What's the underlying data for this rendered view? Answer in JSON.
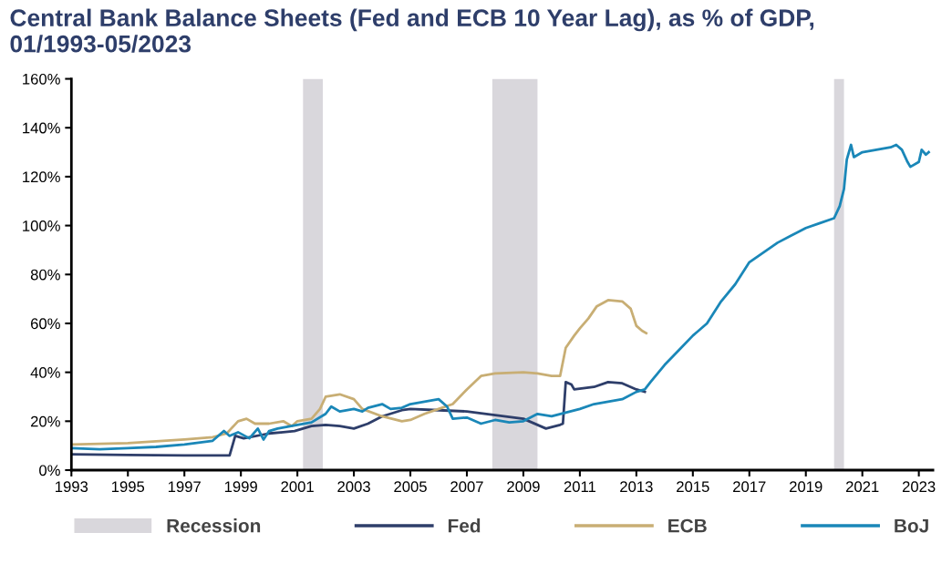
{
  "chart_data": {
    "type": "line",
    "title": "Central Bank Balance Sheets (Fed and ECB 10 Year Lag), as % of GDP, 01/1993-05/2023",
    "xlim": [
      1993,
      2023.5
    ],
    "xticks": [
      1993,
      1995,
      1997,
      1999,
      2001,
      2003,
      2005,
      2007,
      2009,
      2011,
      2013,
      2015,
      2017,
      2019,
      2021,
      2023
    ],
    "ylim": [
      0,
      160
    ],
    "yticks": [
      {
        "value": 0,
        "label": "0%"
      },
      {
        "value": 20,
        "label": "20%"
      },
      {
        "value": 40,
        "label": "40%"
      },
      {
        "value": 60,
        "label": "60%"
      },
      {
        "value": 80,
        "label": "80%"
      },
      {
        "value": 100,
        "label": "100%"
      },
      {
        "value": 120,
        "label": "120%"
      },
      {
        "value": 140,
        "label": "140%"
      },
      {
        "value": 160,
        "label": "160%"
      }
    ],
    "grid": false,
    "legend": "bottom",
    "marker": "none",
    "line_style": "solid",
    "bands": [
      {
        "axis": "x",
        "from": 2001.2,
        "to": 2001.9,
        "label": "Recession",
        "color": "#d9d7dc"
      },
      {
        "axis": "x",
        "from": 2007.9,
        "to": 2009.5,
        "color": "#d9d7dc"
      },
      {
        "axis": "x",
        "from": 2020.0,
        "to": 2020.35,
        "color": "#d9d7dc"
      }
    ],
    "series": [
      {
        "name": "Fed",
        "color": "#2e3e6a",
        "x": [
          1993,
          1995,
          1997,
          1998.6,
          1998.8,
          1999.1,
          2000,
          2000.5,
          2000.9,
          2001.5,
          2002,
          2002.5,
          2003,
          2003.5,
          2004,
          2004.7,
          2005,
          2006,
          2007,
          2008,
          2009,
          2009.8,
          2010.3,
          2010.4,
          2010.5,
          2010.7,
          2010.8,
          2011.5,
          2012,
          2012.5,
          2013,
          2013.3
        ],
        "values": [
          6.5,
          6.2,
          6,
          6,
          14,
          13,
          15,
          15.5,
          16,
          18,
          18.5,
          18,
          17,
          19,
          22,
          24.5,
          25,
          24.5,
          24,
          22.5,
          21,
          17,
          18.5,
          19,
          36,
          35,
          33,
          34,
          36,
          35.5,
          33,
          32
        ]
      },
      {
        "name": "ECB",
        "color": "#c8ae74",
        "x": [
          1993,
          1995,
          1997,
          1998,
          1998.5,
          1998.9,
          1999.2,
          1999.5,
          2000,
          2000.5,
          2000.8,
          2001,
          2001.5,
          2001.8,
          2002,
          2002.5,
          2003,
          2003.3,
          2004,
          2004.7,
          2005,
          2005.5,
          2006,
          2006.5,
          2007,
          2007.5,
          2008,
          2009,
          2009.5,
          2010,
          2010.3,
          2010.5,
          2010.8,
          2011,
          2011.3,
          2011.6,
          2012,
          2012.5,
          2012.8,
          2013,
          2013.2,
          2013.35
        ],
        "values": [
          10.5,
          11,
          12.5,
          13.5,
          15,
          20,
          21,
          19,
          19,
          20,
          18,
          20,
          21,
          25,
          30,
          31,
          29,
          25,
          22,
          20,
          20.5,
          23,
          25,
          27,
          33,
          38.5,
          39.5,
          40,
          39.5,
          38.5,
          38.5,
          50,
          55,
          58,
          62,
          67,
          69.5,
          69,
          66,
          59,
          57,
          56
        ]
      },
      {
        "name": "BoJ",
        "color": "#1a87b8",
        "x": [
          1993,
          1994,
          1995,
          1996,
          1997,
          1998,
          1998.4,
          1998.6,
          1998.9,
          1999.3,
          1999.6,
          1999.8,
          2000,
          2000.3,
          2001,
          2001.5,
          2002,
          2002.2,
          2002.5,
          2003,
          2003.3,
          2003.5,
          2004,
          2004.3,
          2004.7,
          2005,
          2005.5,
          2006,
          2006.3,
          2006.5,
          2007,
          2007.5,
          2008,
          2008.5,
          2009,
          2009.5,
          2010,
          2010.5,
          2011,
          2011.5,
          2012,
          2012.5,
          2013,
          2013.3,
          2013.5,
          2014,
          2014.5,
          2015,
          2015.5,
          2016,
          2016.5,
          2017,
          2017.5,
          2018,
          2018.5,
          2019,
          2019.5,
          2020,
          2020.2,
          2020.35,
          2020.45,
          2020.6,
          2020.7,
          2021,
          2021.5,
          2022,
          2022.2,
          2022.4,
          2022.6,
          2022.7,
          2023,
          2023.1,
          2023.25,
          2023.35
        ],
        "values": [
          9,
          8.5,
          9,
          9.5,
          10.5,
          12,
          16,
          14,
          15.5,
          13,
          17,
          12.5,
          16,
          17,
          18.5,
          19.5,
          23,
          26,
          24,
          25,
          24,
          25.5,
          27,
          25,
          25.5,
          27,
          28,
          29,
          26,
          21,
          21.5,
          19,
          20.5,
          19.5,
          20,
          23,
          22,
          23.5,
          25,
          27,
          28,
          29,
          32,
          33,
          36,
          43,
          49,
          55,
          60,
          69,
          76,
          85,
          89,
          93,
          96,
          99,
          101,
          103,
          108,
          115,
          127,
          133,
          128,
          130,
          131,
          132,
          133,
          131,
          126,
          124,
          126,
          131,
          129,
          130
        ]
      }
    ]
  }
}
